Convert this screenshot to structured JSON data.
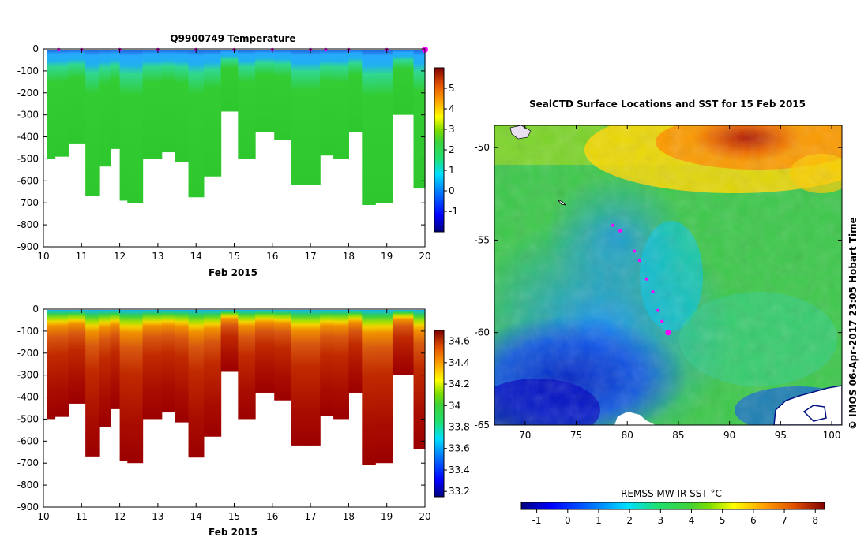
{
  "colors": {
    "jet": [
      "#00007f",
      "#0000ff",
      "#0080ff",
      "#00e0ff",
      "#20e070",
      "#3cd23c",
      "#7ddc00",
      "#ffff00",
      "#ffa000",
      "#e05000",
      "#a00000",
      "#7f0000"
    ],
    "profile_marker": "#ff00ff",
    "land": "#ffffff",
    "background": "#ffffff"
  },
  "chart_data": [
    {
      "type": "heatmap",
      "title": "Q9900749  Temperature",
      "xlabel": "Feb 2015",
      "ylabel": "",
      "xlim": [
        10,
        20
      ],
      "ylim": [
        -900,
        0
      ],
      "xticks": [
        "10",
        "11",
        "12",
        "13",
        "14",
        "15",
        "16",
        "17",
        "18",
        "19",
        "20"
      ],
      "yticks": [
        "0",
        "-100",
        "-200",
        "-300",
        "-400",
        "-500",
        "-600",
        "-700",
        "-800",
        "-900"
      ],
      "colorbar": {
        "min": -2,
        "max": 6,
        "ticks": [
          "5",
          "4",
          "3",
          "2",
          "1",
          "0",
          "-1"
        ]
      },
      "profile_times": [
        10.2,
        10.4,
        10.9,
        11.3,
        11.6,
        11.9,
        12.1,
        12.3,
        12.9,
        13.3,
        13.6,
        14.0,
        14.4,
        14.9,
        15.3,
        15.8,
        16.3,
        16.7,
        17.1,
        17.4,
        17.8,
        18.2,
        18.5,
        18.9,
        19.4,
        20.0
      ],
      "profile_depths": [
        500,
        490,
        430,
        670,
        535,
        455,
        690,
        700,
        500,
        470,
        515,
        675,
        580,
        285,
        500,
        380,
        415,
        620,
        620,
        485,
        500,
        380,
        710,
        700,
        300,
        635
      ]
    },
    {
      "type": "heatmap",
      "title": "",
      "xlabel": "Feb 2015",
      "ylabel": "",
      "xlim": [
        10,
        20
      ],
      "ylim": [
        -900,
        0
      ],
      "xticks": [
        "10",
        "11",
        "12",
        "13",
        "14",
        "15",
        "16",
        "17",
        "18",
        "19",
        "20"
      ],
      "yticks": [
        "0",
        "-100",
        "-200",
        "-300",
        "-400",
        "-500",
        "-600",
        "-700",
        "-800",
        "-900"
      ],
      "colorbar": {
        "min": 33.15,
        "max": 34.7,
        "ticks": [
          "34.6",
          "34.4",
          "34.2",
          "34",
          "33.8",
          "33.6",
          "33.4",
          "33.2"
        ]
      },
      "profile_times": [
        10.2,
        10.4,
        10.9,
        11.3,
        11.6,
        11.9,
        12.1,
        12.3,
        12.9,
        13.3,
        13.6,
        14.0,
        14.4,
        14.9,
        15.3,
        15.8,
        16.3,
        16.7,
        17.1,
        17.4,
        17.8,
        18.2,
        18.5,
        18.9,
        19.4,
        20.0
      ],
      "profile_depths": [
        500,
        490,
        430,
        670,
        535,
        455,
        690,
        700,
        500,
        470,
        515,
        675,
        580,
        285,
        500,
        380,
        415,
        620,
        620,
        485,
        500,
        380,
        710,
        700,
        300,
        635
      ]
    },
    {
      "type": "heatmap",
      "title": "SealCTD Surface Locations and SST for 15 Feb 2015",
      "xlabel": "",
      "ylabel": "",
      "xlim": [
        67,
        101
      ],
      "ylim": [
        -65,
        -48.8
      ],
      "xticks": [
        "70",
        "75",
        "80",
        "85",
        "90",
        "95",
        "100"
      ],
      "yticks": [
        "-50",
        "-55",
        "-60",
        "-65"
      ],
      "colorbar": {
        "label": "REMSS MW-IR SST °C",
        "min": -1.5,
        "max": 8.3,
        "ticks": [
          "-1",
          "0",
          "1",
          "2",
          "3",
          "4",
          "5",
          "6",
          "7",
          "8"
        ]
      },
      "track_lon": [
        78.6,
        79.3,
        80.7,
        81.2,
        81.9,
        82.5,
        83.0,
        83.4,
        84.0
      ],
      "track_lat": [
        -54.2,
        -54.5,
        -55.6,
        -56.1,
        -57.1,
        -57.8,
        -58.8,
        -59.4,
        -60.0
      ],
      "watermark": "©  IMOS 06-Apr-2017 23:05 Hobart Time"
    }
  ]
}
